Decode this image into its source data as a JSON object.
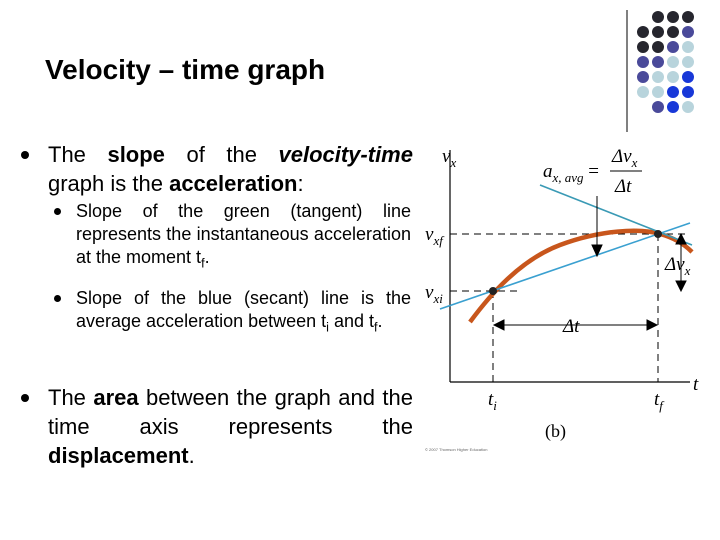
{
  "title": "Velocity – time graph",
  "bullets": [
    {
      "level": 1,
      "parts": [
        {
          "text": "The "
        },
        {
          "text": "slope",
          "style": "bold"
        },
        {
          "text": " of the "
        },
        {
          "text": "velocity-time",
          "style": "bold-italic"
        },
        {
          "text": " graph is the "
        },
        {
          "text": "acceleration",
          "style": "bold"
        },
        {
          "text": ":"
        }
      ]
    },
    {
      "level": 2,
      "parts": [
        {
          "text": "Slope of the green (tangent) line represents the instantaneous acceleration at the moment t"
        },
        {
          "text": "f",
          "style": "sub"
        },
        {
          "text": "."
        }
      ]
    },
    {
      "level": 2,
      "parts": [
        {
          "text": "Slope of the blue (secant) line is the average acceleration between t"
        },
        {
          "text": "i",
          "style": "sub"
        },
        {
          "text": " and t"
        },
        {
          "text": "f",
          "style": "sub"
        },
        {
          "text": "."
        }
      ]
    },
    {
      "level": 1,
      "parts": [
        {
          "text": "The "
        },
        {
          "text": "area",
          "style": "bold"
        },
        {
          "text": " between the graph and the time axis represents the "
        },
        {
          "text": "displacement",
          "style": "bold"
        },
        {
          "text": "."
        }
      ]
    }
  ],
  "figure": {
    "labels": [
      {
        "parts": [
          {
            "text": "v",
            "style": "italic"
          },
          {
            "text": "x",
            "style": "sub"
          }
        ]
      },
      {
        "parts": [
          {
            "text": "a",
            "style": "italic"
          },
          {
            "text": "x, avg",
            "style": "sub"
          },
          {
            "text": " ="
          }
        ]
      },
      {
        "parts": [
          {
            "text": "Δv",
            "style": "italic"
          },
          {
            "text": "x",
            "style": "sub"
          }
        ]
      },
      {
        "parts": [
          {
            "text": "Δt",
            "style": "italic"
          }
        ]
      },
      {
        "parts": [
          {
            "text": "v",
            "style": "italic"
          },
          {
            "text": "xf",
            "style": "sub"
          }
        ]
      },
      {
        "parts": [
          {
            "text": "Δv",
            "style": "italic"
          },
          {
            "text": "x",
            "style": "sub"
          }
        ]
      },
      {
        "parts": [
          {
            "text": "v",
            "style": "italic"
          },
          {
            "text": "xi",
            "style": "sub"
          }
        ]
      },
      {
        "parts": [
          {
            "text": "Δt",
            "style": "italic"
          }
        ]
      },
      {
        "parts": [
          {
            "text": "t",
            "style": "italic"
          }
        ]
      },
      {
        "parts": [
          {
            "text": "t",
            "style": "italic"
          },
          {
            "text": "i",
            "style": "sub"
          }
        ]
      },
      {
        "parts": [
          {
            "text": "t",
            "style": "italic"
          },
          {
            "text": "f",
            "style": "sub"
          }
        ]
      },
      {
        "parts": [
          {
            "text": "(b)"
          }
        ]
      },
      {
        "parts": [
          {
            "text": "© 2007 Thomson Higher Education"
          }
        ]
      }
    ]
  }
}
